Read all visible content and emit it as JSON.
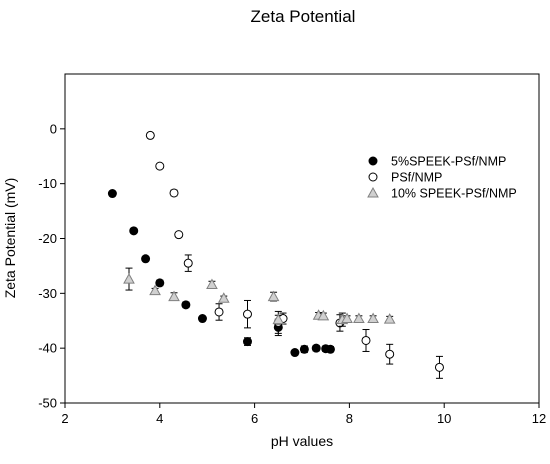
{
  "chart_data": {
    "type": "scatter",
    "title": "Zeta Potential",
    "xlabel": "pH values",
    "ylabel": "Zeta Potential (mV)",
    "xlim": [
      2,
      12
    ],
    "ylim": [
      -50,
      10
    ],
    "xticks": [
      "2",
      "4",
      "6",
      "8",
      "10",
      "12"
    ],
    "yticks": [
      "0",
      "-10",
      "-20",
      "-30",
      "-40",
      "-50"
    ],
    "grid": false,
    "legend_position": "right",
    "series": [
      {
        "name": "5%SPEEK-PSf/NMP",
        "marker": "filled-circle",
        "color": "#000000",
        "points": [
          {
            "x": 3.0,
            "y": -11.8,
            "err": 0.4
          },
          {
            "x": 3.45,
            "y": -18.6,
            "err": 0.4
          },
          {
            "x": 3.7,
            "y": -23.7,
            "err": 0.4
          },
          {
            "x": 4.0,
            "y": -28.1,
            "err": 0.5
          },
          {
            "x": 4.55,
            "y": -32.1,
            "err": 0.5
          },
          {
            "x": 4.9,
            "y": -34.6,
            "err": 0.4
          },
          {
            "x": 5.85,
            "y": -38.8,
            "err": 0.7
          },
          {
            "x": 6.5,
            "y": -36.2,
            "err": 1.5
          },
          {
            "x": 6.85,
            "y": -40.8,
            "err": 0.4
          },
          {
            "x": 7.05,
            "y": -40.2,
            "err": 0.6
          },
          {
            "x": 7.3,
            "y": -40.0,
            "err": 0.5
          },
          {
            "x": 7.5,
            "y": -40.1,
            "err": 0.5
          },
          {
            "x": 7.6,
            "y": -40.2,
            "err": 0.5
          }
        ]
      },
      {
        "name": "PSf/NMP",
        "marker": "open-circle",
        "color": "#000000",
        "points": [
          {
            "x": 3.8,
            "y": -1.2,
            "err": 0.4
          },
          {
            "x": 4.0,
            "y": -6.8,
            "err": 0.4
          },
          {
            "x": 4.3,
            "y": -11.7,
            "err": 0.5
          },
          {
            "x": 4.4,
            "y": -19.3,
            "err": 0.4
          },
          {
            "x": 4.6,
            "y": -24.5,
            "err": 1.5
          },
          {
            "x": 5.25,
            "y": -33.4,
            "err": 1.5
          },
          {
            "x": 5.85,
            "y": -33.8,
            "err": 2.5
          },
          {
            "x": 6.5,
            "y": -35.3,
            "err": 2.0
          },
          {
            "x": 6.6,
            "y": -34.6,
            "err": 1.0
          },
          {
            "x": 7.8,
            "y": -35.4,
            "err": 1.5
          },
          {
            "x": 8.35,
            "y": -38.6,
            "err": 2.0
          },
          {
            "x": 8.85,
            "y": -41.1,
            "err": 1.8
          },
          {
            "x": 9.9,
            "y": -43.5,
            "err": 2.0
          }
        ]
      },
      {
        "name": "10% SPEEK-PSf/NMP",
        "marker": "open-triangle",
        "color": "#808080",
        "points": [
          {
            "x": 3.35,
            "y": -27.4,
            "err": 2.0
          },
          {
            "x": 3.9,
            "y": -29.5,
            "err": 0.4
          },
          {
            "x": 4.3,
            "y": -30.6,
            "err": 0.7
          },
          {
            "x": 5.1,
            "y": -28.4,
            "err": 0.6
          },
          {
            "x": 5.35,
            "y": -30.9,
            "err": 0.4
          },
          {
            "x": 6.4,
            "y": -30.6,
            "err": 0.8
          },
          {
            "x": 6.5,
            "y": -34.8,
            "err": 0.8
          },
          {
            "x": 7.35,
            "y": -34.0,
            "err": 0.5
          },
          {
            "x": 7.45,
            "y": -34.1,
            "err": 0.5
          },
          {
            "x": 7.85,
            "y": -34.8,
            "err": 1.2
          },
          {
            "x": 7.95,
            "y": -34.6,
            "err": 0.5
          },
          {
            "x": 8.2,
            "y": -34.6,
            "err": 0.5
          },
          {
            "x": 8.5,
            "y": -34.6,
            "err": 0.5
          },
          {
            "x": 8.85,
            "y": -34.7,
            "err": 0.5
          }
        ]
      }
    ]
  }
}
